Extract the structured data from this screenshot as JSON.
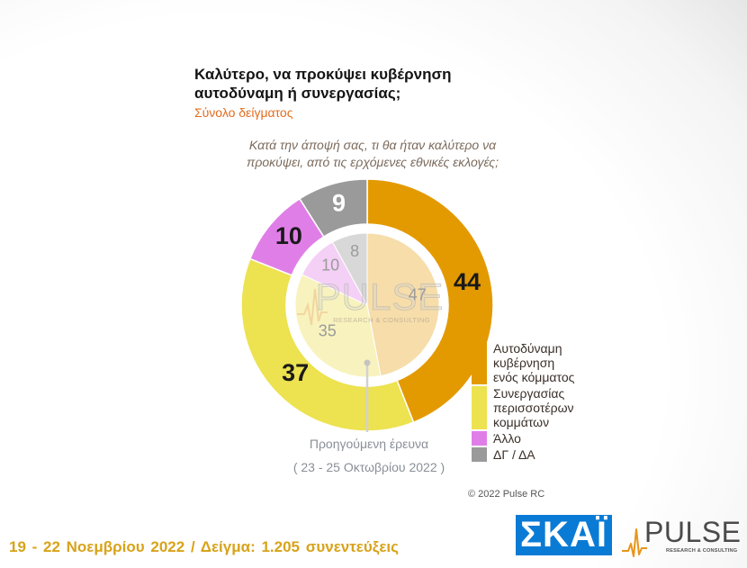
{
  "question": "Κατά την άποψή σας, τι θα ήταν καλύτερο να προκύψει, από τις ερχόμενες εθνικές εκλογές;",
  "chart_data": {
    "type": "pie",
    "title": "Καλύτερο, να προκύψει κυβέρνηση αυτοδύναμη ή συνεργασίας;",
    "subtitle": "Σύνολο δείγματος",
    "categories": [
      "Αυτοδύναμη κυβέρνηση ενός κόμματος",
      "Συνεργασίας περισσοτέρων κομμάτων",
      "Άλλο",
      "ΔΓ / ΔΑ"
    ],
    "series": [
      {
        "values": [
          44,
          37,
          10,
          9
        ]
      },
      {
        "name": "Προηγούμενη έρευνα",
        "values": [
          47,
          35,
          10,
          8
        ]
      }
    ],
    "annotations": [
      "( 23 - 25 Οκτωβρίου 2022 )"
    ],
    "legend": "right",
    "colors": [
      "#E39A00",
      "#EDE24F",
      "#E07EE8",
      "#9A9A9A"
    ],
    "previous_colors": [
      "#F6DDAA",
      "#F8F3BE",
      "#F4D0F6",
      "#D8D8D8"
    ],
    "label_colors": [
      "#1A1A1A",
      "#1A1A1A",
      "#1A1A1A",
      "#FFFFFF"
    ],
    "previous_label_color": "#9B9B9B"
  },
  "watermark": {
    "name": "PULSE",
    "tagline": "RESEARCH & CONSULTING"
  },
  "footer": {
    "copyright": "© 2022 Pulse RC",
    "survey_info": "19 - 22 Νοεμβρίου 2022 / Δείγμα: 1.205 συνεντεύξεις"
  },
  "logos": {
    "skai": "ΣΚΑΪ",
    "pulse": "PULSE",
    "pulse_tagline": "RESEARCH & CONSULTING",
    "pulse_wave_icon": "pulse-wave-icon"
  },
  "theme": {
    "subtitle_color": "#E36C1E",
    "footer_color": "#D8A31A",
    "skai_blue": "#0A7BD5"
  }
}
